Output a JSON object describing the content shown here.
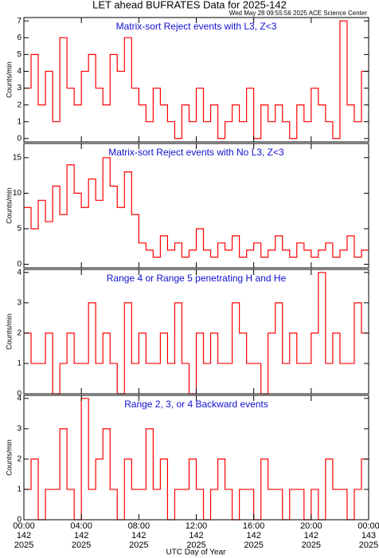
{
  "title": "LET ahead BUFRATES Data for 2025-142",
  "timestamp": "Wed May 28 09:55:56 2025 ACE Science Center",
  "xlabel": "UTC Day of Year",
  "chart_data": [
    {
      "type": "line",
      "title": "Matrix-sort Reject events with L3, Z<3",
      "ylabel": "Counts/min",
      "color": "#ff0000",
      "xlim": [
        0,
        1440
      ],
      "xticks": [
        0,
        240,
        480,
        720,
        960,
        1200,
        1440
      ],
      "ylim": [
        -0.2,
        7.2
      ],
      "yticks": [
        0,
        1,
        2,
        3,
        4,
        5,
        6,
        7
      ],
      "x": [
        0,
        30,
        60,
        90,
        120,
        150,
        180,
        210,
        240,
        270,
        300,
        330,
        360,
        390,
        420,
        450,
        480,
        510,
        540,
        570,
        600,
        630,
        660,
        690,
        720,
        750,
        780,
        810,
        840,
        870,
        900,
        930,
        960,
        990,
        1020,
        1050,
        1080,
        1110,
        1140,
        1170,
        1200,
        1230,
        1260,
        1290,
        1320,
        1350,
        1380,
        1410
      ],
      "values": [
        3,
        5,
        2,
        4,
        1,
        6,
        3,
        2,
        4,
        5,
        3,
        2,
        5,
        4,
        6,
        3,
        2,
        1,
        3,
        2,
        1,
        0,
        2,
        1,
        3,
        1,
        2,
        0,
        1,
        2,
        1,
        3,
        0,
        2,
        1,
        2,
        1,
        0,
        2,
        1,
        3,
        2,
        1,
        0,
        7,
        2,
        1,
        4
      ]
    },
    {
      "type": "line",
      "title": "Matrix-sort Reject events with No L3, Z<3",
      "ylabel": "Counts/min",
      "color": "#ff0000",
      "xlim": [
        0,
        1440
      ],
      "xticks": [
        0,
        240,
        480,
        720,
        960,
        1200,
        1440
      ],
      "ylim": [
        -0.5,
        17
      ],
      "yticks": [
        0,
        5,
        10,
        15
      ],
      "x": [
        0,
        30,
        60,
        90,
        120,
        150,
        180,
        210,
        240,
        270,
        300,
        330,
        360,
        390,
        420,
        450,
        480,
        510,
        540,
        570,
        600,
        630,
        660,
        690,
        720,
        750,
        780,
        810,
        840,
        870,
        900,
        930,
        960,
        990,
        1020,
        1050,
        1080,
        1110,
        1140,
        1170,
        1200,
        1230,
        1260,
        1290,
        1320,
        1350,
        1380,
        1410
      ],
      "values": [
        8,
        5,
        9,
        6,
        11,
        7,
        14,
        10,
        8,
        12,
        9,
        15,
        11,
        8,
        13,
        7,
        3,
        2,
        1,
        4,
        2,
        3,
        1,
        2,
        5,
        2,
        1,
        3,
        2,
        4,
        1,
        2,
        3,
        1,
        2,
        4,
        2,
        1,
        3,
        2,
        1,
        2,
        3,
        1,
        2,
        4,
        1,
        2
      ]
    },
    {
      "type": "line",
      "title": "Range 4 or Range 5 penetrating H and He",
      "ylabel": "Counts/min",
      "color": "#ff0000",
      "xlim": [
        0,
        1440
      ],
      "xticks": [
        0,
        240,
        480,
        720,
        960,
        1200,
        1440
      ],
      "ylim": [
        0,
        4.1
      ],
      "yticks": [
        0,
        1,
        2,
        3,
        4
      ],
      "x": [
        0,
        30,
        60,
        90,
        120,
        150,
        180,
        210,
        240,
        270,
        300,
        330,
        360,
        390,
        420,
        450,
        480,
        510,
        540,
        570,
        600,
        630,
        660,
        690,
        720,
        750,
        780,
        810,
        840,
        870,
        900,
        930,
        960,
        990,
        1020,
        1050,
        1080,
        1110,
        1140,
        1170,
        1200,
        1230,
        1260,
        1290,
        1320,
        1350,
        1380,
        1410
      ],
      "values": [
        2,
        1,
        1,
        2,
        0,
        1,
        2,
        1,
        1,
        3,
        1,
        2,
        1,
        0,
        3,
        1,
        2,
        1,
        1,
        2,
        1,
        3,
        1,
        0,
        2,
        1,
        2,
        1,
        1,
        3,
        2,
        1,
        1,
        0,
        2,
        3,
        1,
        2,
        1,
        1,
        2,
        4,
        1,
        2,
        1,
        1,
        3,
        2
      ]
    },
    {
      "type": "line",
      "title": "Range 2, 3, or 4 Backward events",
      "ylabel": "Counts/min",
      "color": "#ff0000",
      "xlim": [
        0,
        1440
      ],
      "xticks": [
        {
          "value": 0,
          "label": "00:00\n142\n2025"
        },
        {
          "value": 240,
          "label": "04:00\n142\n2025"
        },
        {
          "value": 480,
          "label": "08:00\n142\n2025"
        },
        {
          "value": 720,
          "label": "12:00\n142\n2025"
        },
        {
          "value": 960,
          "label": "16:00\n142\n2025"
        },
        {
          "value": 1200,
          "label": "20:00\n142\n2025"
        },
        {
          "value": 1440,
          "label": "00:00\n143\n2025"
        }
      ],
      "ylim": [
        0,
        4.1
      ],
      "yticks": [
        0,
        1,
        2,
        3,
        4
      ],
      "x": [
        0,
        30,
        60,
        90,
        120,
        150,
        180,
        210,
        240,
        270,
        300,
        330,
        360,
        390,
        420,
        450,
        480,
        510,
        540,
        570,
        600,
        630,
        660,
        690,
        720,
        750,
        780,
        810,
        840,
        870,
        900,
        930,
        960,
        990,
        1020,
        1050,
        1080,
        1110,
        1140,
        1170,
        1200,
        1230,
        1260,
        1290,
        1320,
        1350,
        1380,
        1410
      ],
      "values": [
        1,
        2,
        0,
        1,
        1,
        3,
        1,
        0,
        4,
        1,
        2,
        3,
        1,
        0,
        2,
        1,
        1,
        3,
        1,
        2,
        0,
        1,
        1,
        2,
        1,
        0,
        1,
        2,
        1,
        0,
        1,
        1,
        0,
        2,
        1,
        1,
        0,
        1,
        1,
        0,
        1,
        0,
        2,
        1,
        1,
        0,
        1,
        2
      ]
    }
  ]
}
